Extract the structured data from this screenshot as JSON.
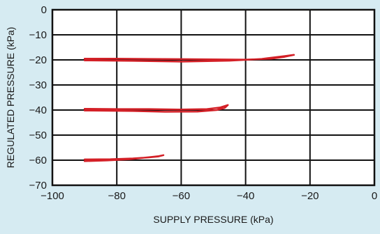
{
  "chart_data": {
    "type": "line",
    "title": "",
    "xlabel": "SUPPLY PRESSURE (kPa)",
    "ylabel": "REGULATED PRESSURE (kPa)",
    "xlim": [
      -100,
      0
    ],
    "ylim": [
      -70,
      0
    ],
    "x_ticks": [
      -100,
      -80,
      -60,
      -40,
      -20,
      0
    ],
    "y_ticks": [
      0,
      -10,
      -20,
      -30,
      -40,
      -50,
      -60,
      -70
    ],
    "x_tick_labels": [
      "−100",
      "−80",
      "−60",
      "−40",
      "−20",
      "0"
    ],
    "y_tick_labels": [
      "0",
      "−10",
      "−20",
      "−30",
      "−40",
      "−50",
      "−60",
      "−70"
    ],
    "grid": true,
    "legend": "none",
    "series_color": "#d42027",
    "background_color": "#d6ebf2",
    "plot_background": "#ffffff",
    "series": [
      {
        "x": [
          -90,
          -80,
          -70,
          -60,
          -50,
          -40,
          -32,
          -28,
          -25,
          -28,
          -35,
          -45,
          -60,
          -75,
          -90
        ],
        "y": [
          -19.5,
          -19.5,
          -19.6,
          -19.7,
          -19.8,
          -19.9,
          -19.5,
          -18.8,
          -18.0,
          -18.5,
          -19.6,
          -20.3,
          -20.7,
          -20.4,
          -20.2
        ]
      },
      {
        "x": [
          -90,
          -80,
          -70,
          -60,
          -52,
          -48,
          -45.5,
          -46.5,
          -49,
          -55,
          -65,
          -75,
          -90
        ],
        "y": [
          -39.5,
          -39.6,
          -39.6,
          -39.8,
          -39.6,
          -39.0,
          -38.0,
          -39.2,
          -40.0,
          -40.6,
          -40.7,
          -40.4,
          -40.2
        ]
      },
      {
        "x": [
          -90,
          -82,
          -75,
          -70,
          -67,
          -65.5,
          -67,
          -70,
          -76,
          -83,
          -90
        ],
        "y": [
          -59.7,
          -59.6,
          -59.3,
          -58.9,
          -58.5,
          -58.0,
          -58.4,
          -58.8,
          -59.6,
          -60.1,
          -60.4
        ]
      }
    ]
  }
}
